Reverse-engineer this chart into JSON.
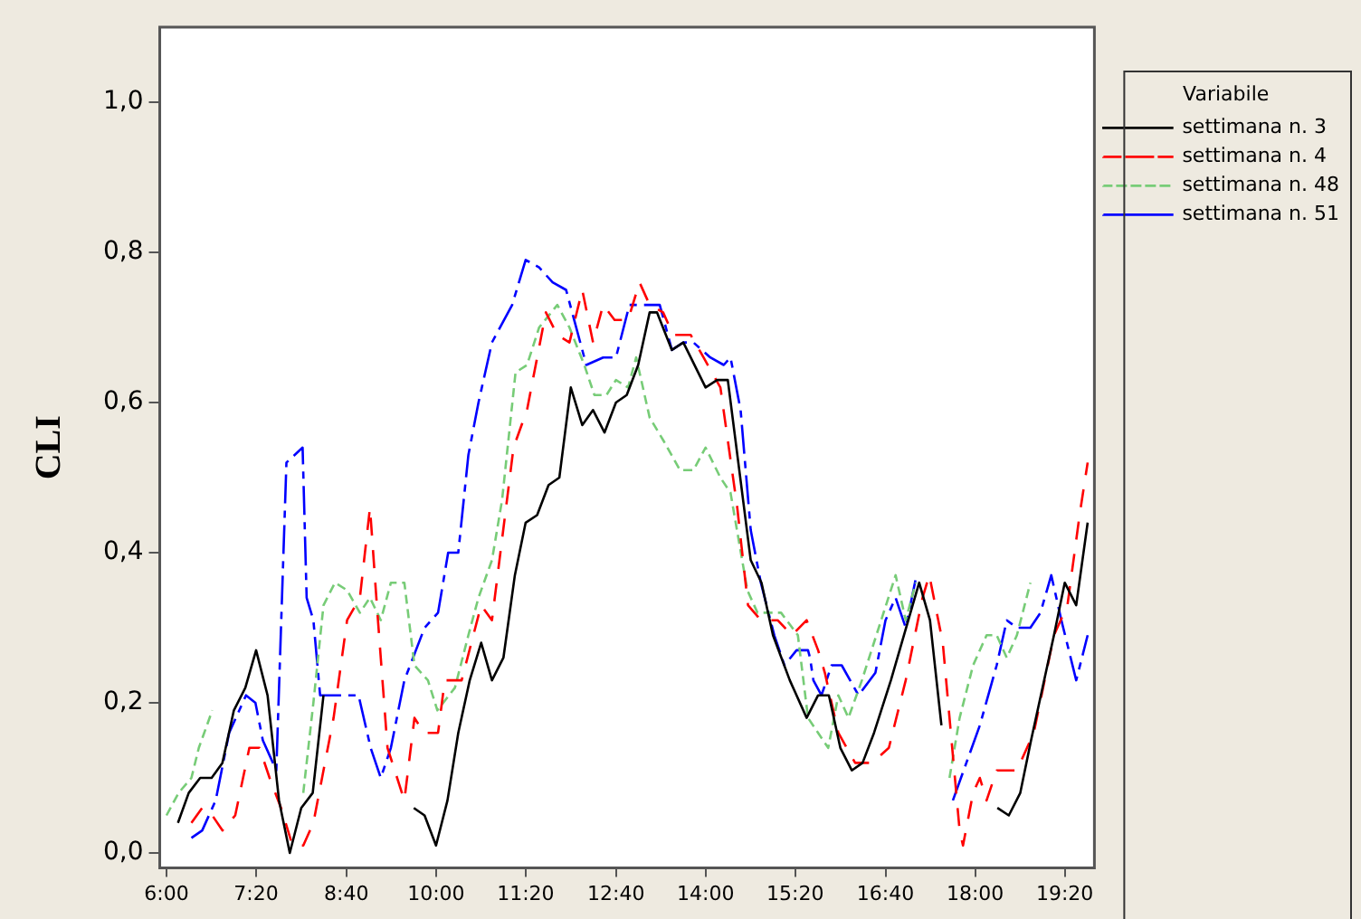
{
  "chart_data": {
    "type": "line",
    "ylabel": "CLI",
    "legend_title": "Variabile",
    "legend": "top right",
    "grid": false,
    "marker": "none",
    "xlim": [
      5.9,
      19.77
    ],
    "ylim": [
      -0.02,
      1.1
    ],
    "xticks": [
      {
        "value": 6,
        "label": "6:00"
      },
      {
        "value": 7.33,
        "label": "7:20"
      },
      {
        "value": 8.67,
        "label": "8:40"
      },
      {
        "value": 10,
        "label": "10:00"
      },
      {
        "value": 11.33,
        "label": "11:20"
      },
      {
        "value": 12.67,
        "label": "12:40"
      },
      {
        "value": 14,
        "label": "14:00"
      },
      {
        "value": 15.33,
        "label": "15:20"
      },
      {
        "value": 16.67,
        "label": "16:40"
      },
      {
        "value": 18,
        "label": "18:00"
      },
      {
        "value": 19.33,
        "label": "19:20"
      }
    ],
    "yticks": [
      {
        "value": 0,
        "label": "0,0"
      },
      {
        "value": 0.2,
        "label": "0,2"
      },
      {
        "value": 0.4,
        "label": "0,4"
      },
      {
        "value": 0.6,
        "label": "0,6"
      },
      {
        "value": 0.8,
        "label": "0,8"
      },
      {
        "value": 1,
        "label": "1,0"
      }
    ],
    "series": [
      {
        "name": "settimana n. 3",
        "color": "#000000",
        "line_style": "solid",
        "x": [
          6.17,
          6.33,
          6.5,
          6.67,
          6.83,
          7.0,
          7.17,
          7.33,
          7.5,
          7.67,
          7.83,
          8.0,
          8.17,
          8.33,
          9.0,
          9.67,
          9.83,
          10.0,
          10.17,
          10.33,
          10.5,
          10.67,
          10.83,
          11.0,
          11.17,
          11.33,
          11.5,
          11.67,
          11.83,
          12.0,
          12.17,
          12.33,
          12.5,
          12.67,
          12.83,
          13.0,
          13.17,
          13.28,
          13.5,
          13.67,
          14.0,
          14.17,
          14.33,
          14.5,
          14.67,
          14.83,
          15.0,
          15.25,
          15.5,
          15.67,
          15.83,
          16.0,
          16.17,
          16.33,
          16.5,
          16.75,
          17.17,
          17.33,
          17.5,
          17.9,
          18.33,
          18.5,
          18.67,
          18.83,
          19.17,
          19.33,
          19.5,
          19.67
        ],
        "values": [
          0.04,
          0.08,
          0.1,
          0.1,
          0.12,
          0.19,
          0.22,
          0.27,
          0.21,
          0.07,
          0.0,
          0.06,
          0.08,
          0.21,
          null,
          0.06,
          0.05,
          0.01,
          0.07,
          0.16,
          0.23,
          0.28,
          0.23,
          0.26,
          0.37,
          0.44,
          0.45,
          0.49,
          0.5,
          0.62,
          0.57,
          0.59,
          0.56,
          0.6,
          0.61,
          0.65,
          0.72,
          0.72,
          0.67,
          0.68,
          0.62,
          0.63,
          0.63,
          0.51,
          0.39,
          0.36,
          0.29,
          0.23,
          0.18,
          0.21,
          0.21,
          0.14,
          0.11,
          0.12,
          0.16,
          0.23,
          0.36,
          0.31,
          0.17,
          null,
          0.06,
          0.05,
          0.08,
          0.15,
          0.29,
          0.36,
          0.33,
          0.44
        ]
      },
      {
        "name": "settimana n. 4",
        "color": "#ff0000",
        "line_style": "dashed",
        "x": [
          6.37,
          6.53,
          6.68,
          6.83,
          7.02,
          7.23,
          7.38,
          7.53,
          7.7,
          7.87,
          8.03,
          8.18,
          8.48,
          8.68,
          8.87,
          9.02,
          9.13,
          9.28,
          9.53,
          9.68,
          9.82,
          10.03,
          10.13,
          10.28,
          10.38,
          10.67,
          10.83,
          11.15,
          11.35,
          11.63,
          11.8,
          11.98,
          12.17,
          12.33,
          12.48,
          12.65,
          12.85,
          13.02,
          13.17,
          13.37,
          13.52,
          13.78,
          13.97,
          14.22,
          14.47,
          14.63,
          14.82,
          15.07,
          15.28,
          15.5,
          15.67,
          15.77,
          15.97,
          16.22,
          16.47,
          16.72,
          16.97,
          17.22,
          17.32,
          17.52,
          17.77,
          17.82,
          17.97,
          18.07,
          18.17,
          18.32,
          18.62,
          18.87,
          19.17,
          19.37,
          19.55,
          19.67
        ],
        "values": [
          0.04,
          0.06,
          0.05,
          0.03,
          0.05,
          0.14,
          0.14,
          0.1,
          0.06,
          0.01,
          0.01,
          0.04,
          0.18,
          0.31,
          0.34,
          0.46,
          0.32,
          0.14,
          0.07,
          0.18,
          0.16,
          0.16,
          0.23,
          0.23,
          0.23,
          0.33,
          0.31,
          0.54,
          0.59,
          0.72,
          0.69,
          0.68,
          0.75,
          0.68,
          0.73,
          0.71,
          0.71,
          0.76,
          0.73,
          0.72,
          0.69,
          0.69,
          0.66,
          0.62,
          0.46,
          0.33,
          0.31,
          0.31,
          0.29,
          0.31,
          0.27,
          0.24,
          0.16,
          0.12,
          0.12,
          0.14,
          0.23,
          0.34,
          0.37,
          0.28,
          0.03,
          0.01,
          0.08,
          0.1,
          0.07,
          0.11,
          0.11,
          0.16,
          0.29,
          0.33,
          0.45,
          0.52
        ]
      },
      {
        "name": "settimana n. 48",
        "color": "#77cc77",
        "line_style": "dotted",
        "x": [
          6.0,
          6.18,
          6.37,
          6.48,
          6.68,
          7.5,
          8.03,
          8.18,
          8.33,
          8.5,
          8.68,
          8.87,
          9.02,
          9.18,
          9.33,
          9.53,
          9.68,
          9.88,
          10.02,
          10.28,
          10.48,
          10.63,
          10.83,
          10.98,
          11.18,
          11.35,
          11.53,
          11.8,
          11.98,
          12.2,
          12.35,
          12.53,
          12.67,
          12.85,
          12.97,
          13.17,
          13.37,
          13.62,
          13.82,
          14.0,
          14.22,
          14.37,
          14.62,
          14.77,
          14.92,
          15.12,
          15.37,
          15.52,
          15.67,
          15.82,
          15.97,
          16.12,
          16.32,
          16.57,
          16.82,
          16.97,
          17.12,
          17.4,
          17.62,
          17.77,
          17.97,
          18.17,
          18.32,
          18.47,
          18.62,
          18.82
        ],
        "values": [
          0.05,
          0.08,
          0.1,
          0.14,
          0.19,
          null,
          0.08,
          0.2,
          0.33,
          0.36,
          0.35,
          0.32,
          0.34,
          0.31,
          0.36,
          0.36,
          0.25,
          0.23,
          0.19,
          0.22,
          0.29,
          0.34,
          0.39,
          0.47,
          0.64,
          0.65,
          0.7,
          0.73,
          0.7,
          0.65,
          0.61,
          0.61,
          0.63,
          0.62,
          0.66,
          0.58,
          0.55,
          0.51,
          0.51,
          0.54,
          0.5,
          0.48,
          0.35,
          0.32,
          0.32,
          0.32,
          0.29,
          0.18,
          0.16,
          0.14,
          0.21,
          0.18,
          0.23,
          0.3,
          0.37,
          0.31,
          0.36,
          null,
          0.1,
          0.18,
          0.25,
          0.29,
          0.29,
          0.26,
          0.29,
          0.36
        ]
      },
      {
        "name": "settimana n. 51",
        "color": "#0000ff",
        "line_style": "dashdot",
        "x": [
          6.37,
          6.53,
          6.73,
          6.93,
          7.18,
          7.32,
          7.43,
          7.63,
          7.78,
          8.02,
          8.08,
          8.18,
          8.28,
          8.63,
          8.85,
          9.03,
          9.18,
          9.33,
          9.53,
          9.83,
          10.03,
          10.18,
          10.33,
          10.48,
          10.63,
          10.83,
          11.13,
          11.33,
          11.53,
          11.73,
          11.93,
          12.23,
          12.48,
          12.67,
          12.87,
          13.13,
          13.32,
          13.5,
          13.67,
          13.82,
          14.07,
          14.27,
          14.37,
          14.52,
          14.67,
          14.82,
          15.02,
          15.17,
          15.35,
          15.52,
          15.55,
          15.6,
          15.72,
          15.87,
          16.02,
          16.27,
          16.52,
          16.67,
          16.82,
          16.97,
          17.13,
          17.4,
          17.67,
          17.87,
          18.07,
          18.32,
          18.47,
          18.62,
          18.82,
          18.97,
          19.13,
          19.28,
          19.5,
          19.67
        ],
        "values": [
          0.02,
          0.03,
          0.07,
          0.16,
          0.21,
          0.2,
          0.15,
          0.11,
          0.52,
          0.54,
          0.34,
          0.31,
          0.21,
          0.21,
          0.21,
          0.14,
          0.1,
          0.14,
          0.23,
          0.3,
          0.32,
          0.4,
          0.4,
          0.53,
          0.6,
          0.68,
          0.73,
          0.79,
          0.78,
          0.76,
          0.75,
          0.65,
          0.66,
          0.66,
          0.73,
          0.73,
          0.73,
          0.67,
          0.68,
          0.68,
          0.66,
          0.65,
          0.66,
          0.59,
          0.43,
          0.36,
          0.29,
          0.25,
          0.27,
          0.27,
          0.26,
          0.23,
          0.21,
          0.25,
          0.25,
          0.21,
          0.24,
          0.31,
          0.34,
          0.3,
          0.37,
          null,
          0.07,
          0.12,
          0.17,
          0.25,
          0.31,
          0.3,
          0.3,
          0.32,
          0.37,
          0.31,
          0.23,
          0.29
        ]
      }
    ]
  }
}
